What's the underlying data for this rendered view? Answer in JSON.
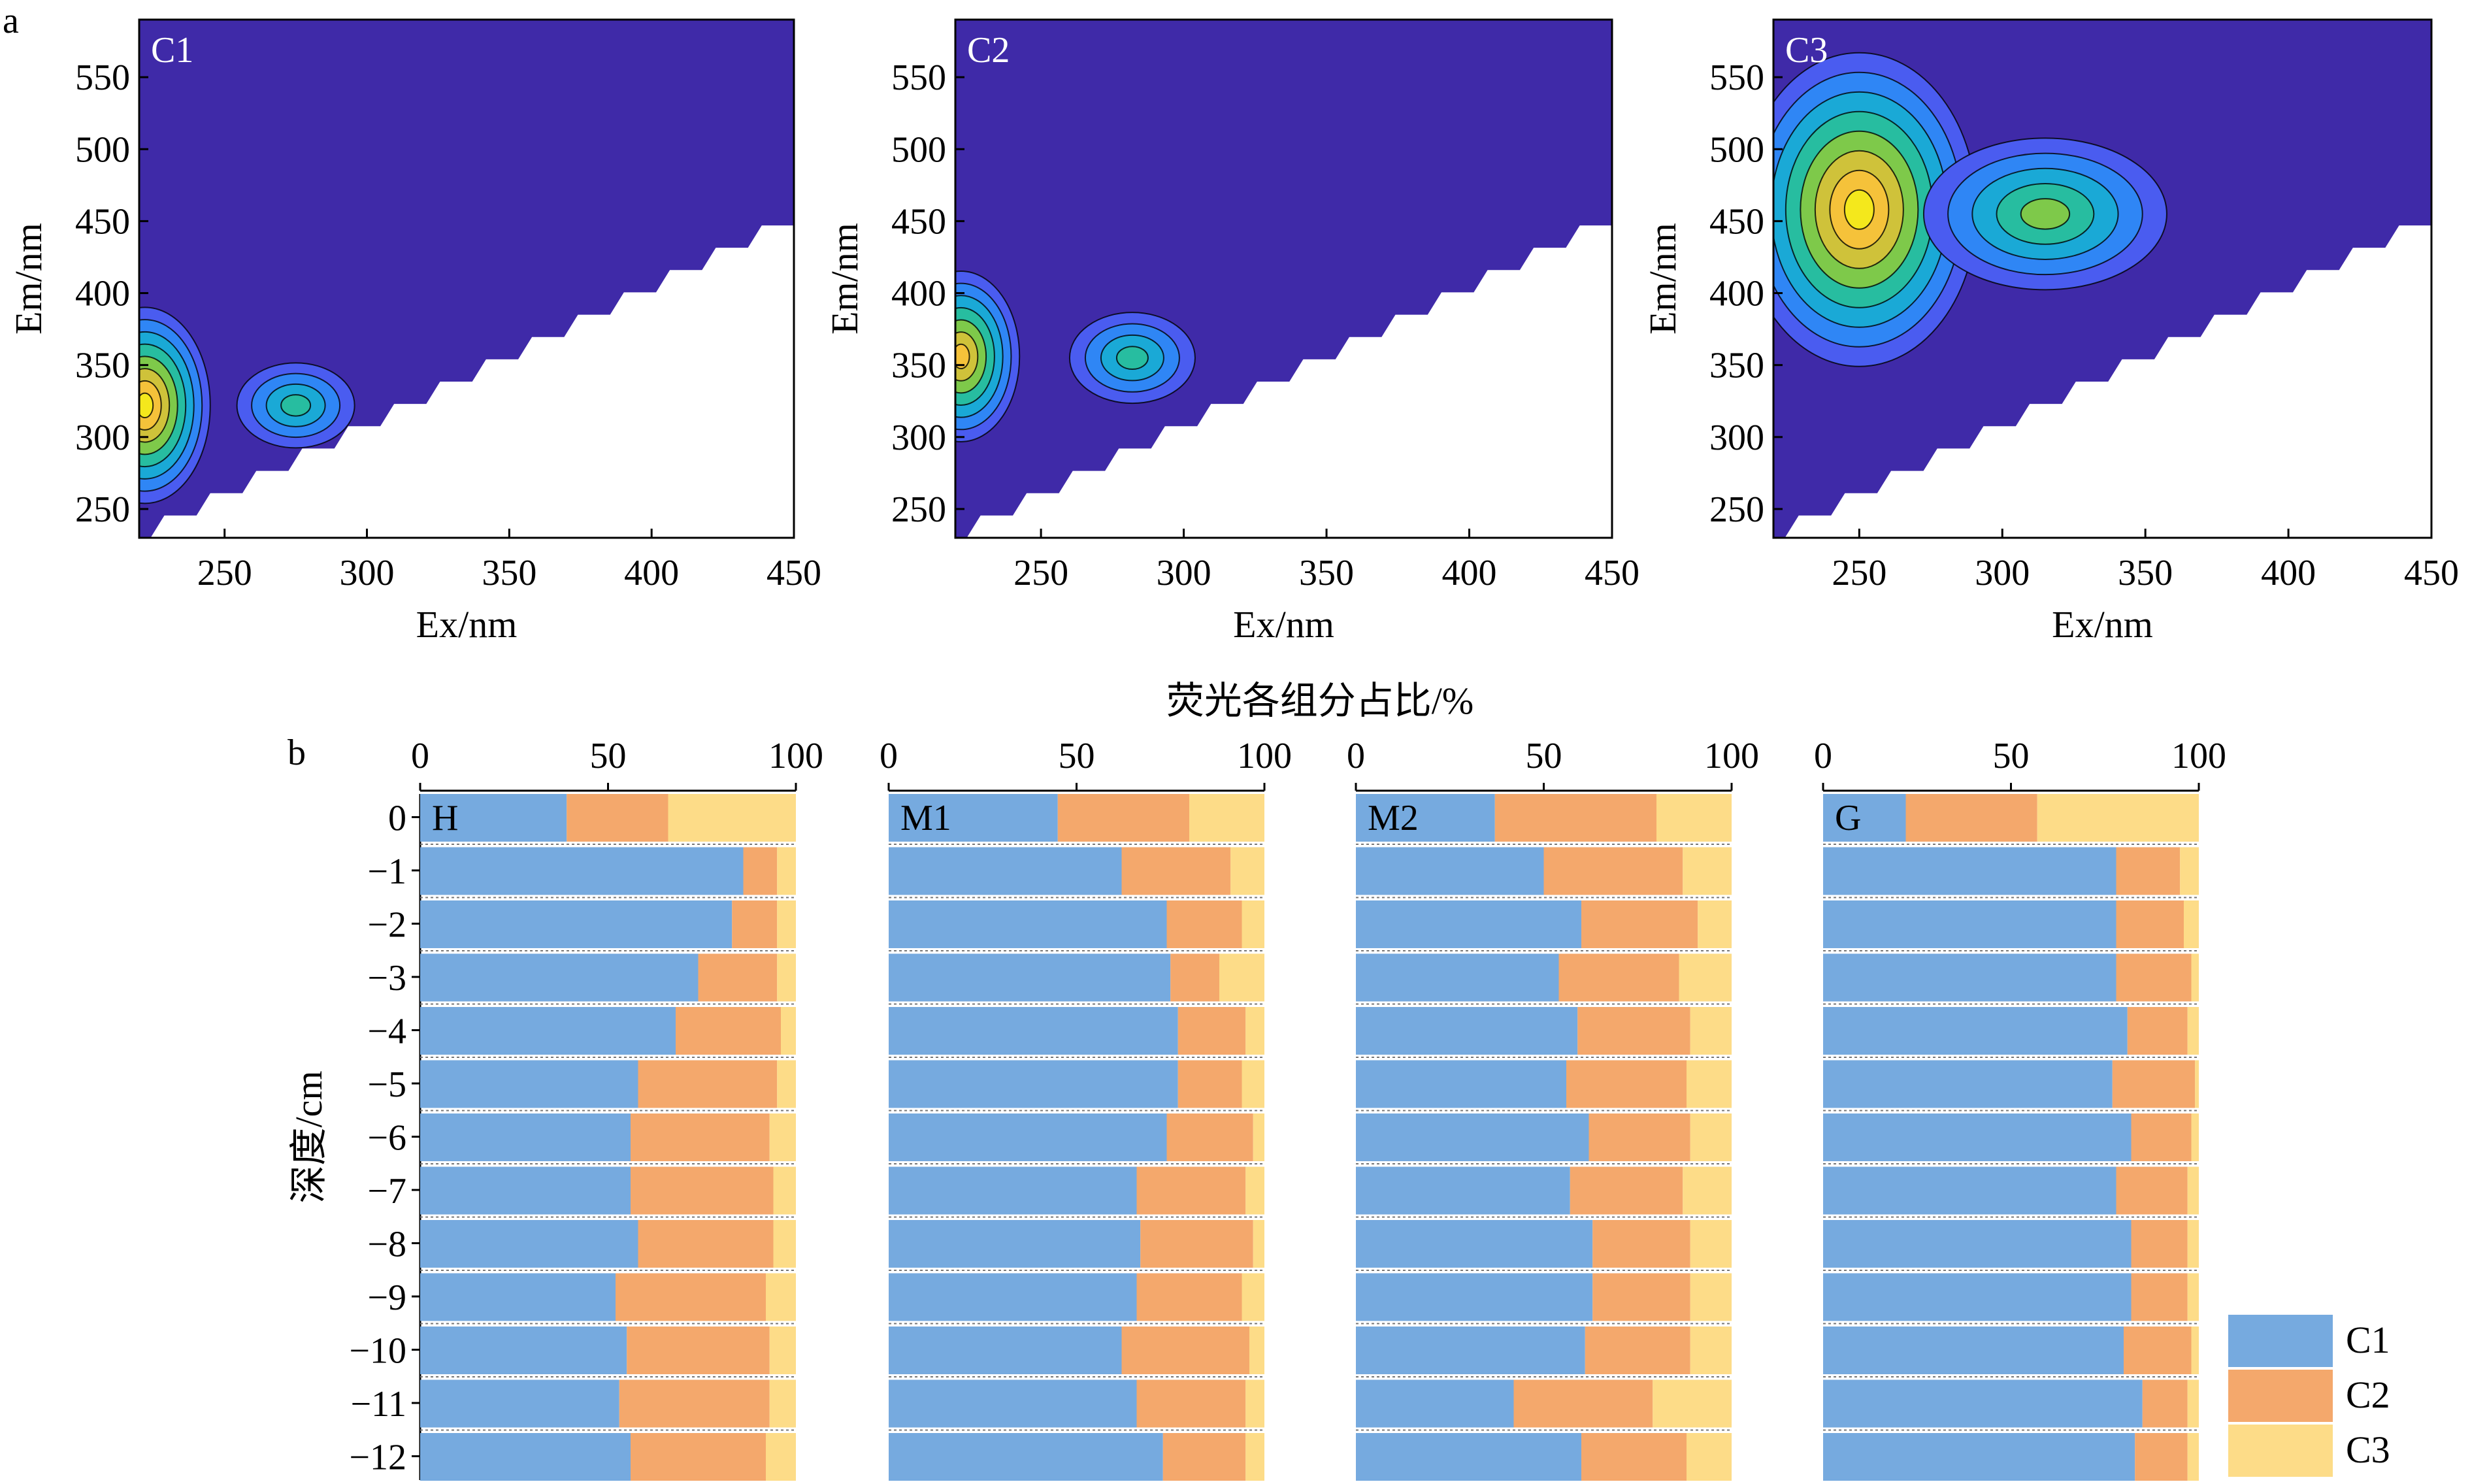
{
  "figure": {
    "panel_a_letter": "a",
    "panel_b_letter": "b"
  },
  "chart_data": [
    {
      "type": "heatmap",
      "panel": "a",
      "title": "C1",
      "xlabel": "Ex/nm",
      "ylabel": "Em/nm",
      "xlim": [
        220,
        450
      ],
      "ylim": [
        230,
        590
      ],
      "xticks": [
        250,
        300,
        350,
        400,
        450
      ],
      "yticks": [
        250,
        300,
        350,
        400,
        450,
        500,
        550
      ],
      "peaks": [
        {
          "ex": 222,
          "em": 322,
          "intensity": 1.0
        },
        {
          "ex": 275,
          "em": 322,
          "intensity": 0.5
        }
      ]
    },
    {
      "type": "heatmap",
      "panel": "a",
      "title": "C2",
      "xlabel": "Ex/nm",
      "ylabel": "Em/nm",
      "xlim": [
        220,
        450
      ],
      "ylim": [
        230,
        590
      ],
      "xticks": [
        250,
        300,
        350,
        400,
        450
      ],
      "yticks": [
        250,
        300,
        350,
        400,
        450,
        500,
        550
      ],
      "peaks": [
        {
          "ex": 222,
          "em": 356,
          "intensity": 0.85
        },
        {
          "ex": 282,
          "em": 355,
          "intensity": 0.55
        }
      ]
    },
    {
      "type": "heatmap",
      "panel": "a",
      "title": "C3",
      "xlabel": "Ex/nm",
      "ylabel": "Em/nm",
      "xlim": [
        220,
        450
      ],
      "ylim": [
        230,
        590
      ],
      "xticks": [
        250,
        300,
        350,
        400,
        450
      ],
      "yticks": [
        250,
        300,
        350,
        400,
        450,
        500,
        550
      ],
      "peaks": [
        {
          "ex": 250,
          "em": 458,
          "intensity": 1.0
        },
        {
          "ex": 315,
          "em": 455,
          "intensity": 0.6
        }
      ]
    },
    {
      "type": "bar",
      "panel": "b",
      "orientation": "horizontal",
      "stacked": true,
      "xlabel": "荧光各组分占比/%",
      "ylabel": "深度/cm",
      "xlim": [
        0,
        100
      ],
      "xticks": [
        0,
        50,
        100
      ],
      "categories": [
        "0",
        "−1",
        "−2",
        "−3",
        "−4",
        "−5",
        "−6",
        "−7",
        "−8",
        "−9",
        "−10",
        "−11",
        "−12"
      ],
      "series_names": [
        "C1",
        "C2",
        "C3"
      ],
      "colors": [
        "#76aadf",
        "#f4a86c",
        "#fddc88"
      ],
      "legend": "bottom-right",
      "sites": [
        {
          "name": "H",
          "series": [
            {
              "name": "C1",
              "values": [
                39,
                86,
                83,
                74,
                68,
                58,
                56,
                56,
                58,
                52,
                55,
                53,
                56
              ]
            },
            {
              "name": "C2",
              "values": [
                27,
                9,
                12,
                21,
                28,
                37,
                37,
                38,
                36,
                40,
                38,
                40,
                36
              ]
            },
            {
              "name": "C3",
              "values": [
                34,
                5,
                5,
                5,
                4,
                5,
                7,
                6,
                6,
                8,
                7,
                7,
                8
              ]
            }
          ]
        },
        {
          "name": "M1",
          "series": [
            {
              "name": "C1",
              "values": [
                45,
                62,
                74,
                75,
                77,
                77,
                74,
                66,
                67,
                66,
                62,
                66,
                73
              ]
            },
            {
              "name": "C2",
              "values": [
                35,
                29,
                20,
                13,
                18,
                17,
                23,
                29,
                30,
                28,
                34,
                29,
                22
              ]
            },
            {
              "name": "C3",
              "values": [
                20,
                9,
                6,
                12,
                5,
                6,
                3,
                5,
                3,
                6,
                4,
                5,
                5
              ]
            }
          ]
        },
        {
          "name": "M2",
          "series": [
            {
              "name": "C1",
              "values": [
                37,
                50,
                60,
                54,
                59,
                56,
                62,
                57,
                63,
                63,
                61,
                42,
                60
              ]
            },
            {
              "name": "C2",
              "values": [
                43,
                37,
                31,
                32,
                30,
                32,
                27,
                30,
                26,
                26,
                28,
                37,
                28
              ]
            },
            {
              "name": "C3",
              "values": [
                20,
                13,
                9,
                14,
                11,
                12,
                11,
                13,
                11,
                11,
                11,
                21,
                12
              ]
            }
          ]
        },
        {
          "name": "G",
          "series": [
            {
              "name": "C1",
              "values": [
                22,
                78,
                78,
                78,
                81,
                77,
                82,
                78,
                82,
                82,
                80,
                85,
                83
              ]
            },
            {
              "name": "C2",
              "values": [
                35,
                17,
                18,
                20,
                16,
                22,
                16,
                19,
                15,
                15,
                18,
                12,
                14
              ]
            },
            {
              "name": "C3",
              "values": [
                43,
                5,
                4,
                2,
                3,
                1,
                2,
                3,
                3,
                3,
                2,
                3,
                3
              ]
            }
          ]
        }
      ]
    }
  ]
}
